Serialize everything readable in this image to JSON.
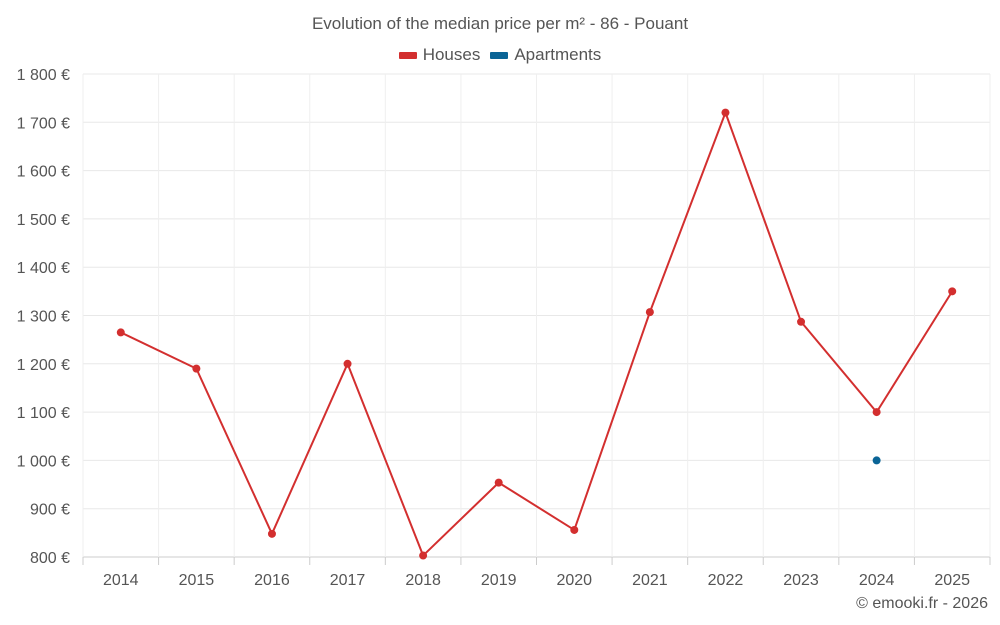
{
  "chart_data": {
    "type": "line",
    "title": "Evolution of the median price per m² - 86 - Pouant",
    "categories": [
      "2014",
      "2015",
      "2016",
      "2017",
      "2018",
      "2019",
      "2020",
      "2021",
      "2022",
      "2023",
      "2024",
      "2025"
    ],
    "series": [
      {
        "name": "Houses",
        "color": "#d32f2f",
        "values": [
          1265,
          1190,
          848,
          1200,
          803,
          954,
          856,
          1307,
          1720,
          1287,
          1100,
          1350
        ]
      },
      {
        "name": "Apartments",
        "color": "#0a6496",
        "values": [
          null,
          null,
          null,
          null,
          null,
          null,
          null,
          null,
          null,
          null,
          1000,
          null
        ]
      }
    ],
    "ylim": [
      800,
      1800
    ],
    "yticks": [
      800,
      900,
      1000,
      1100,
      1200,
      1300,
      1400,
      1500,
      1600,
      1700,
      1800
    ],
    "ytick_labels": [
      "800 €",
      "900 €",
      "1 000 €",
      "1 100 €",
      "1 200 €",
      "1 300 €",
      "1 400 €",
      "1 500 €",
      "1 600 €",
      "1 700 €",
      "1 800 €"
    ],
    "grid": true,
    "legend_position": "top-center"
  },
  "credit": "© emooki.fr - 2026"
}
